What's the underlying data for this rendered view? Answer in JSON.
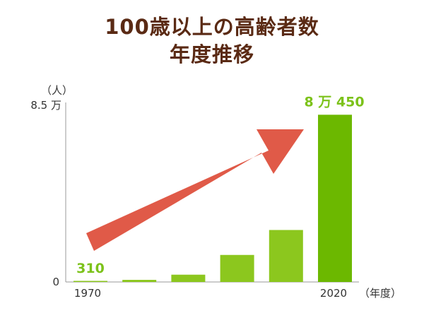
{
  "chart_data": {
    "type": "bar",
    "title": [
      "100歳以上の高齢者数",
      "年度推移"
    ],
    "ylabel": "（人）",
    "xlabel": "（年度）",
    "y_ticks": [
      "8.5 万",
      "0"
    ],
    "x_tick_labels": [
      "1970",
      "2020"
    ],
    "ylim": [
      0,
      85000
    ],
    "categories": [
      "1970",
      "",
      "",
      "",
      "",
      "2020"
    ],
    "values": [
      310,
      1000,
      3500,
      13000,
      25000,
      80450
    ],
    "data_labels": [
      {
        "index": 0,
        "text": "310"
      },
      {
        "index": 5,
        "text": "8 万 450"
      }
    ],
    "annotation": "upward-trend-arrow",
    "grid": false,
    "colors": {
      "bar_light": "#8cc71e",
      "bar_dark": "#6cb800",
      "label_green": "#7cc21a",
      "arrow": "#e05a48",
      "axis": "#999999",
      "title": "#5a2a14"
    }
  }
}
